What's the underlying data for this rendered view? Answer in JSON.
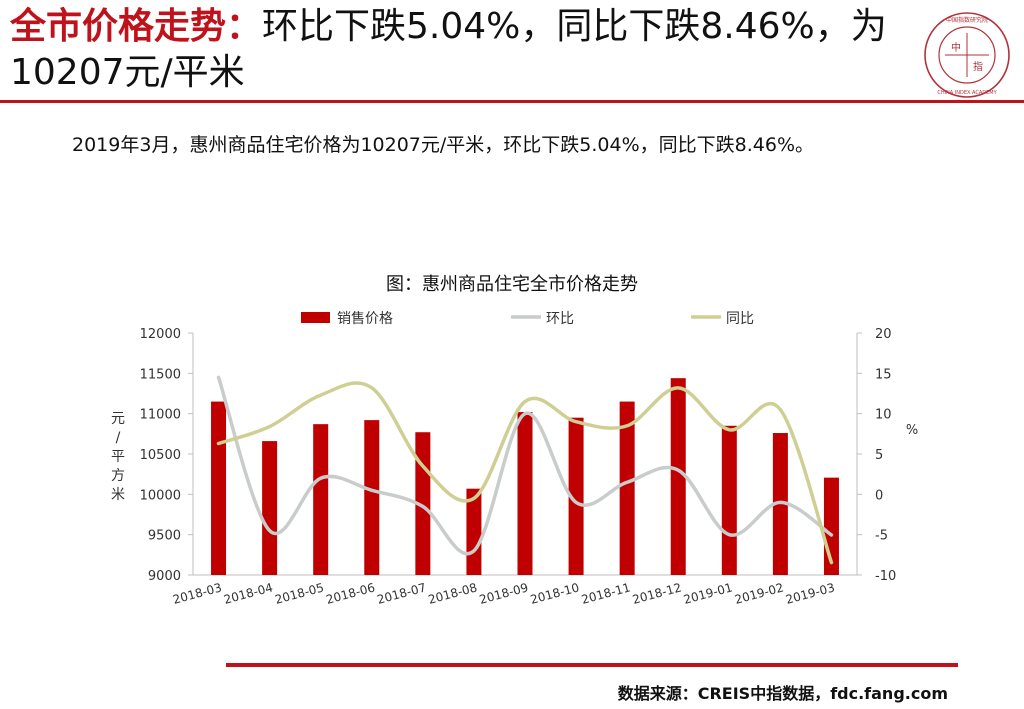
{
  "header": {
    "title_highlight": "全市价格走势：",
    "title_rest": "环比下跌5.04%，同比下跌8.46%，为10207元/平米"
  },
  "logo": {
    "center_text_1": "中",
    "center_text_2": "指",
    "ring_text_top": "中国指数研究院",
    "ring_text_bottom": "CHINA INDEX ACADEMY"
  },
  "summary": "2019年3月，惠州商品住宅价格为10207元/平米，环比下跌5.04%，同比下跌8.46%。",
  "source": "数据来源：CREIS中指数据，fdc.fang.com",
  "colors": {
    "brand_red": "#c0121a",
    "bar": "#c00000",
    "mom_line": "#c8ccca",
    "yoy_line": "#cfcf94"
  },
  "chart_data": {
    "type": "bar",
    "title": "图：惠州商品住宅全市价格走势",
    "categories": [
      "2018-03",
      "2018-04",
      "2018-05",
      "2018-06",
      "2018-07",
      "2018-08",
      "2018-09",
      "2018-10",
      "2018-11",
      "2018-12",
      "2019-01",
      "2019-02",
      "2019-03"
    ],
    "series": [
      {
        "name": "销售价格",
        "type": "bar",
        "axis": "left",
        "values": [
          11150,
          10660,
          10870,
          10920,
          10770,
          10070,
          11020,
          10950,
          11150,
          11440,
          10850,
          10760,
          10207
        ]
      },
      {
        "name": "环比",
        "type": "line",
        "axis": "right",
        "values": [
          14.5,
          -4.5,
          2.0,
          0.5,
          -1.5,
          -7.0,
          10.0,
          -1.0,
          1.5,
          3.0,
          -5.0,
          -1.0,
          -5.04
        ]
      },
      {
        "name": "同比",
        "type": "line",
        "axis": "right",
        "values": [
          6.3,
          8.4,
          12.3,
          13.2,
          3.5,
          -0.5,
          11.5,
          9.0,
          8.5,
          13.2,
          8.0,
          10.5,
          -8.46
        ]
      }
    ],
    "ylabel": "元/平方米",
    "y2label": "%",
    "ylim": [
      9000,
      12000
    ],
    "y2lim": [
      -10,
      20
    ],
    "y_ticks": [
      "9000",
      "9500",
      "10000",
      "10500",
      "11000",
      "11500",
      "12000"
    ],
    "y2_ticks": [
      "-10",
      "-5",
      "0",
      "5",
      "10",
      "15",
      "20"
    ],
    "legend_position": "top",
    "grid": false
  }
}
